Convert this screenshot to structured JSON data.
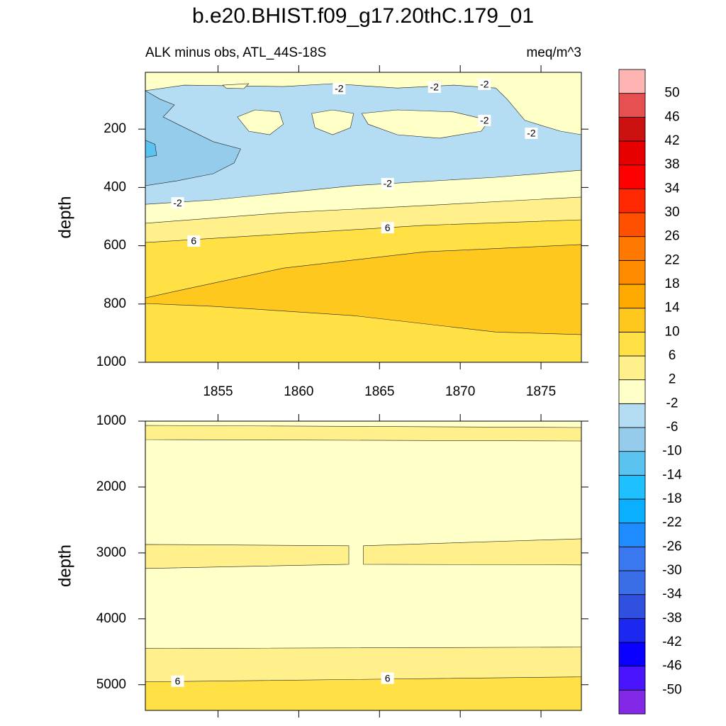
{
  "chart_data": {
    "type": "contour",
    "title": "b.e20.BHIST.f09_g17.20thC.179_01",
    "colorbar": {
      "levels": [
        -50,
        -46,
        -42,
        -38,
        -34,
        -30,
        -26,
        -22,
        -18,
        -14,
        -10,
        -6,
        -2,
        2,
        6,
        10,
        14,
        18,
        22,
        26,
        30,
        34,
        38,
        42,
        46,
        50
      ],
      "colors": [
        "#8228e6",
        "#4b14ff",
        "#0a00ff",
        "#1a28f0",
        "#3050e0",
        "#3a6ee6",
        "#3a78f0",
        "#1e8cff",
        "#0ab0ff",
        "#1ec0ff",
        "#5ac3f0",
        "#96cceb",
        "#b4dcf2",
        "#ffffc8",
        "#fff08c",
        "#ffe146",
        "#ffc81e",
        "#ffaa00",
        "#ff8c00",
        "#ff7800",
        "#ff5000",
        "#ff2800",
        "#ff0000",
        "#e60000",
        "#cc1111",
        "#e65050",
        "#ffb4b4"
      ]
    },
    "panels": [
      {
        "subtitle_left": "ALK minus obs, ATL_44S-18S",
        "subtitle_right": "meq/m^3",
        "y_label": "depth",
        "xlim": [
          1850.5,
          1877.5
        ],
        "ylim": [
          1000,
          5
        ],
        "xticks": [
          1855,
          1860,
          1865,
          1870,
          1875
        ],
        "x_tick_labels": true,
        "yticks": [
          200,
          400,
          600,
          800,
          1000
        ],
        "base_level": 6,
        "regions": [
          {
            "level": 10,
            "x": [
              1850.5,
              1852.9,
              1859.05,
              1867.8,
              1877.5,
              1877.5,
              1872.2,
              1863.4,
              1854.7,
              1850.5
            ],
            "y": [
              779,
              750,
              677,
              621,
              596,
              905,
              896,
              840,
              808,
              798
            ]
          },
          {
            "level": 2,
            "x": [
              1850.5,
              1877.5,
              1877.5,
              1867.8,
              1859.05,
              1850.5
            ],
            "y": [
              5,
              5,
              511,
              530,
              560,
              589
            ]
          },
          {
            "level": -2,
            "x": [
              1850.5,
              1877.5,
              1877.5,
              1867.8,
              1859.05,
              1850.5
            ],
            "y": [
              5,
              5,
              433,
              462,
              487,
              523
            ]
          },
          {
            "level": -6,
            "x": [
              1850.5,
              1852.9,
              1859.05,
              1862.1,
              1866.1,
              1869.6,
              1872.2,
              1872.9,
              1874.0,
              1876.2,
              1877.5,
              1877.5,
              1872.2,
              1863.4,
              1854.7,
              1850.5
            ],
            "y": [
              68,
              49,
              54,
              44,
              59,
              49,
              59,
              97,
              170,
              207,
              219,
              341,
              365,
              394,
              443,
              458
            ]
          },
          {
            "level": -2,
            "x": [
              1856.2,
              1857.3,
              1858.8,
              1859.05,
              1858.2,
              1856.9
            ],
            "y": [
              158,
              134,
              141,
              183,
              219,
              207
            ]
          },
          {
            "level": -2,
            "x": [
              1860.8,
              1862.1,
              1863.4,
              1863.2,
              1862.1,
              1861.0
            ],
            "y": [
              146,
              134,
              146,
              195,
              219,
              195
            ]
          },
          {
            "level": -2,
            "x": [
              1863.9,
              1866.1,
              1869.6,
              1871.8,
              1871.3,
              1868.7,
              1866.1,
              1864.3
            ],
            "y": [
              146,
              134,
              141,
              170,
              207,
              231,
              219,
              183
            ]
          },
          {
            "level": -2,
            "x": [
              1855.3,
              1856.9,
              1856.6,
              1855.5
            ],
            "y": [
              49,
              44,
              61,
              59
            ]
          },
          {
            "level": -10,
            "x": [
              1850.5,
              1851.4,
              1852.3,
              1851.6,
              1852.5,
              1854.7,
              1856.4,
              1856.0,
              1854.7,
              1852.5,
              1850.5
            ],
            "y": [
              68,
              97,
              117,
              158,
              183,
              243,
              268,
              316,
              353,
              377,
              394
            ]
          },
          {
            "level": -14,
            "x": [
              1850.5,
              1851.1,
              1851.2,
              1850.5
            ],
            "y": [
              238,
              252,
              290,
              297
            ]
          }
        ],
        "contour_labels": [
          {
            "x": 1862.5,
            "y": 61,
            "value": -2
          },
          {
            "x": 1868.4,
            "y": 56,
            "value": -2
          },
          {
            "x": 1871.5,
            "y": 46,
            "value": -2
          },
          {
            "x": 1871.5,
            "y": 170,
            "value": -2
          },
          {
            "x": 1874.4,
            "y": 214,
            "value": -2
          },
          {
            "x": 1865.5,
            "y": 387,
            "value": -2
          },
          {
            "x": 1852.5,
            "y": 453,
            "value": -2
          },
          {
            "x": 1865.5,
            "y": 538,
            "value": 6
          },
          {
            "x": 1853.5,
            "y": 584,
            "value": 6
          }
        ]
      },
      {
        "y_label": "depth",
        "xlim": [
          1850.5,
          1877.5
        ],
        "ylim": [
          5390,
          1000
        ],
        "xticks": [
          1855,
          1860,
          1865,
          1870,
          1875
        ],
        "x_tick_labels": false,
        "yticks": [
          1000,
          2000,
          3000,
          4000,
          5000
        ],
        "base_level": 6,
        "regions": [
          {
            "level": 2,
            "x": [
              1850.5,
              1877.5,
              1877.5,
              1850.5
            ],
            "y": [
              1000,
              1000,
              4881,
              4956
            ]
          },
          {
            "level": -2,
            "x": [
              1850.5,
              1877.5,
              1877.5,
              1850.5
            ],
            "y": [
              1000,
              1000,
              4429,
              4451
            ]
          },
          {
            "level": 2,
            "x": [
              1850.5,
              1877.5,
              1877.5,
              1850.5
            ],
            "y": [
              1065,
              1097,
              1301,
              1280
            ]
          },
          {
            "level": 2,
            "x": [
              1850.5,
              1863.1,
              1863.1,
              1850.5
            ],
            "y": [
              2871,
              2892,
              3172,
              3236
            ]
          },
          {
            "level": 2,
            "x": [
              1864.0,
              1877.5,
              1877.5,
              1864.0
            ],
            "y": [
              2892,
              2785,
              3182,
              3172
            ]
          }
        ],
        "contour_labels": [
          {
            "x": 1852.5,
            "y": 4946,
            "value": 6
          },
          {
            "x": 1865.5,
            "y": 4902,
            "value": 6
          }
        ]
      }
    ]
  }
}
